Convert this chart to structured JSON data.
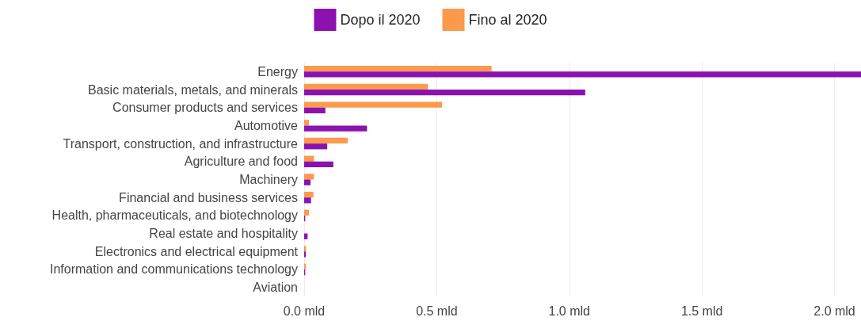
{
  "chart_data": {
    "type": "bar",
    "orientation": "horizontal",
    "categories": [
      "Energy",
      "Basic materials, metals, and minerals",
      "Consumer products and services",
      "Automotive",
      "Transport, construction, and infrastructure",
      "Agriculture and food",
      "Machinery",
      "Financial and business services",
      "Health, pharmaceuticals, and biotechnology",
      "Real estate and hospitality",
      "Electronics and electrical equipment",
      "Information and communications technology",
      "Aviation"
    ],
    "series": [
      {
        "name": "Dopo il 2020",
        "color": "#8b12ae",
        "values": [
          2.1,
          1.06,
          0.08,
          0.237,
          0.087,
          0.11,
          0.024,
          0.026,
          0.004,
          0.013,
          0.006,
          0.004,
          0
        ]
      },
      {
        "name": "Fino al 2020",
        "color": "#fb9a4d",
        "values": [
          0.707,
          0.467,
          0.52,
          0.018,
          0.164,
          0.037,
          0.037,
          0.035,
          0.018,
          0,
          0.007,
          0.006,
          0
        ]
      }
    ],
    "xlim": [
      0,
      2.1
    ],
    "xticks": [
      {
        "value": 0,
        "label": "0.0 mld"
      },
      {
        "value": 0.5,
        "label": "0.5 mld"
      },
      {
        "value": 1,
        "label": "1.0 mld"
      },
      {
        "value": 1.5,
        "label": "1.5 mld"
      },
      {
        "value": 2,
        "label": "2.0 mld"
      }
    ],
    "grid": "x",
    "legend": "top"
  }
}
